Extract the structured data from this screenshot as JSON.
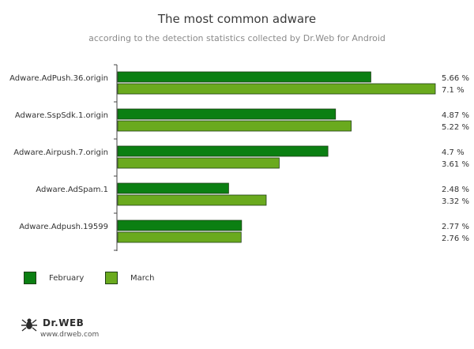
{
  "title": "The most common adware",
  "subtitle": "according to the detection statistics collected by Dr.Web for Android",
  "colors": {
    "february": "#0b7f12",
    "march": "#6aaa1e",
    "axis": "#444444"
  },
  "chart_data": {
    "type": "bar",
    "orientation": "horizontal",
    "categories": [
      "Adware.AdPush.36.origin",
      "Adware.SspSdk.1.origin",
      "Adware.Airpush.7.origin",
      "Adware.AdSpam.1",
      "Adware.Adpush.19599"
    ],
    "series": [
      {
        "name": "February",
        "values": [
          5.66,
          4.87,
          4.7,
          2.48,
          2.77
        ],
        "labels": [
          "5.66 %",
          "4.87 %",
          "4.7 %",
          "2.48 %",
          "2.77 %"
        ]
      },
      {
        "name": "March",
        "values": [
          7.1,
          5.22,
          3.61,
          3.32,
          2.76
        ],
        "labels": [
          "7.1 %",
          "5.22 %",
          "3.61 %",
          "3.32 %",
          "2.76 %"
        ]
      }
    ],
    "xlim": [
      0,
      7.1
    ],
    "grid": false,
    "legend_placement": "bottom-left"
  },
  "legend": {
    "february_label": "February",
    "march_label": "March"
  },
  "logo": {
    "brand": "Dr.WEB",
    "url": "www.drweb.com",
    "icon": "spider-logo-icon"
  }
}
